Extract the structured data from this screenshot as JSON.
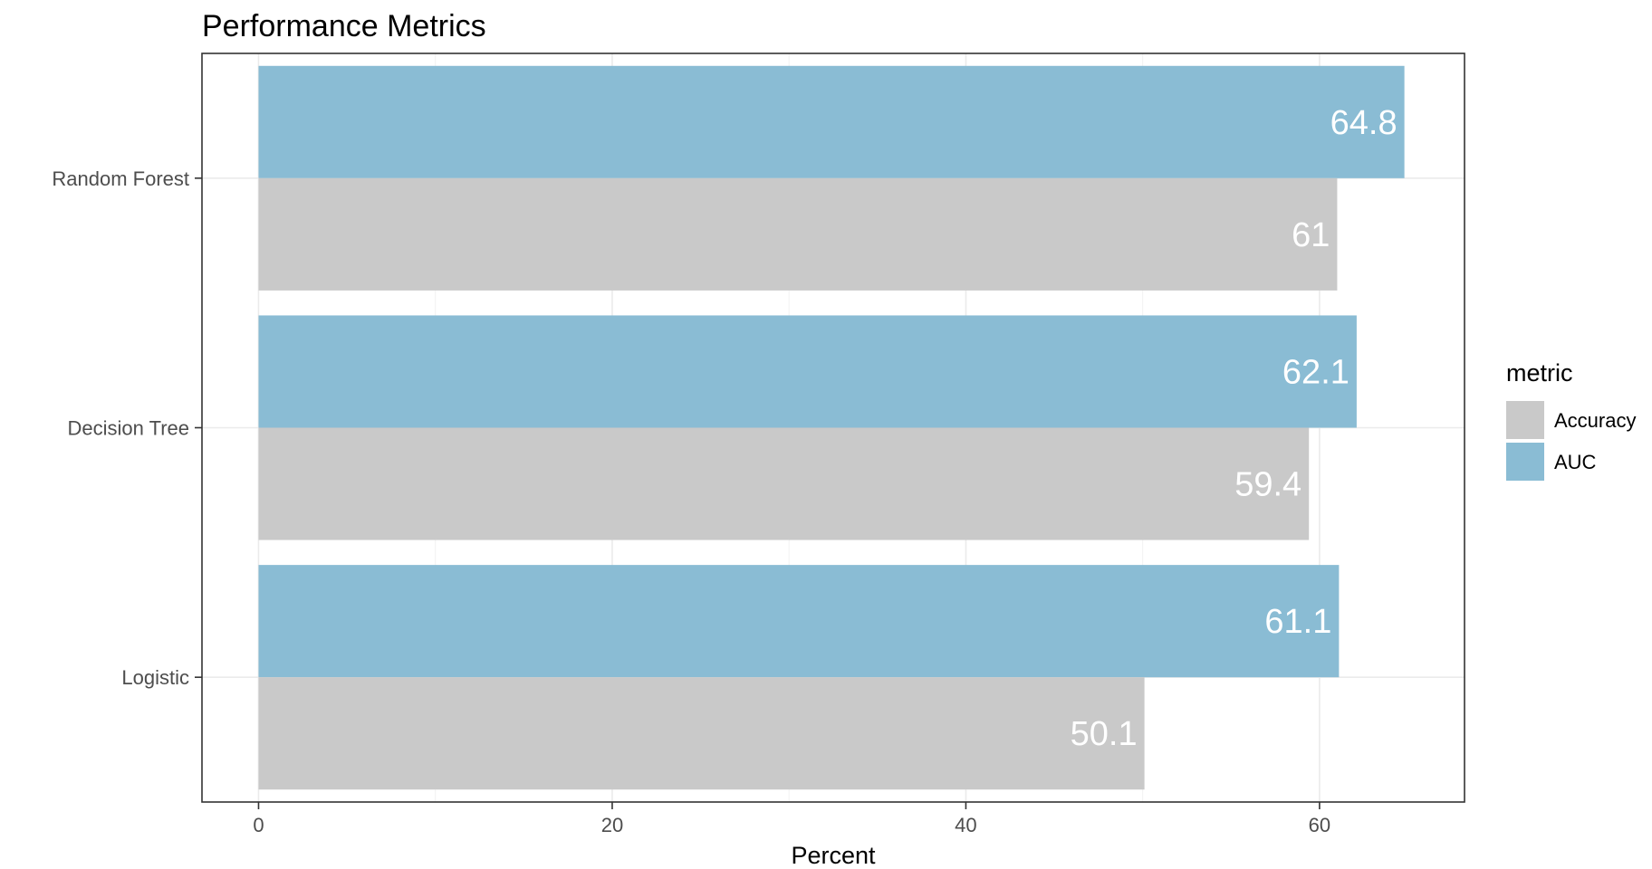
{
  "chart_data": {
    "type": "bar",
    "orientation": "horizontal",
    "title": "Performance Metrics",
    "xlabel": "Percent",
    "ylabel": "",
    "categories": [
      "Random Forest",
      "Decision Tree",
      "Logistic"
    ],
    "series": [
      {
        "name": "AUC",
        "values": [
          64.8,
          62.1,
          61.1
        ],
        "color": "#8abcd4"
      },
      {
        "name": "Accuracy",
        "values": [
          61,
          59.4,
          50.1
        ],
        "color": "#c9c9c9"
      }
    ],
    "data_labels": {
      "AUC": [
        "64.8",
        "62.1",
        "61.1"
      ],
      "Accuracy": [
        "61",
        "59.4",
        "50.1"
      ]
    },
    "xlim": [
      -3.2,
      68.2
    ],
    "xticks": [
      0,
      20,
      40,
      60
    ],
    "xtick_labels": [
      "0",
      "20",
      "40",
      "60"
    ],
    "grid": true,
    "legend": {
      "title": "metric",
      "position": "right",
      "entries": [
        {
          "label": "Accuracy",
          "color": "#c9c9c9"
        },
        {
          "label": "AUC",
          "color": "#8abcd4"
        }
      ]
    }
  }
}
